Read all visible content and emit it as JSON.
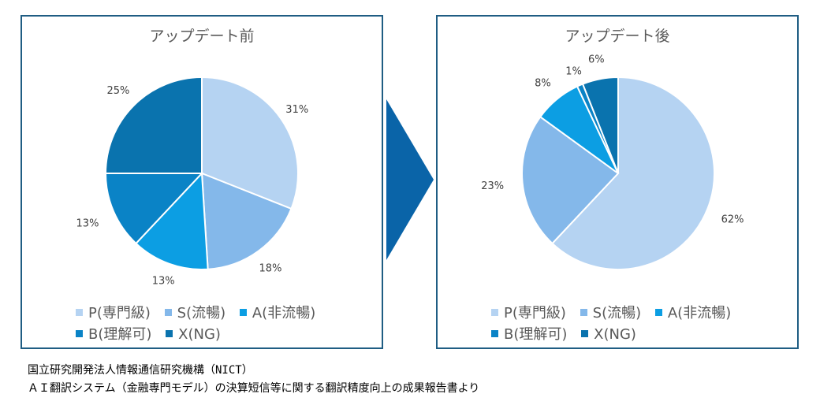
{
  "colors": {
    "P": "#b5d3f2",
    "S": "#84b8ea",
    "A": "#0c9ee3",
    "B": "#0a83c6",
    "X": "#0a73ae",
    "border": "#1f5d83",
    "arrow": "#0a64a8"
  },
  "chart_data": [
    {
      "type": "pie",
      "title": "アップデート前",
      "labels": [
        "P(専門級)",
        "S(流暢)",
        "A(非流暢)",
        "B(理解可)",
        "X(NG)"
      ],
      "values": [
        31,
        18,
        13,
        13,
        25
      ],
      "value_labels": [
        "31%",
        "18%",
        "13%",
        "13%",
        "25%"
      ],
      "legend": "bottom"
    },
    {
      "type": "pie",
      "title": "アップデート後",
      "labels": [
        "P(専門級)",
        "S(流暢)",
        "A(非流暢)",
        "B(理解可)",
        "X(NG)"
      ],
      "values": [
        62,
        23,
        8,
        1,
        6
      ],
      "value_labels": [
        "62%",
        "23%",
        "8%",
        "1%",
        "6%"
      ],
      "legend": "bottom"
    }
  ],
  "source": {
    "line1": "国立研究開発法人情報通信研究機構（NICT）",
    "line2": "ＡＩ翻訳システム（金融専門モデル）の決算短信等に関する翻訳精度向上の成果報告書より"
  }
}
